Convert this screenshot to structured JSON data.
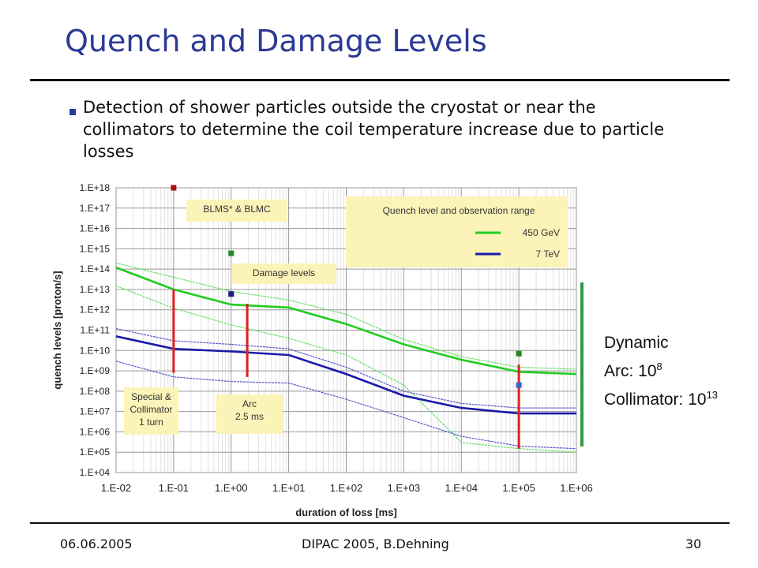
{
  "slide": {
    "title": "Quench and Damage Levels",
    "bullet": "Detection of shower particles outside the cryostat or near the collimators to determine the coil temperature increase due to particle losses",
    "side_note": {
      "line1": "Dynamic",
      "line2_prefix": "Arc: 10",
      "line2_exp": "8",
      "line3_prefix": "Collimator: 10",
      "line3_exp": "13"
    },
    "footer": {
      "date": "06.06.2005",
      "center": "DIPAC 2005, B.Dehning",
      "page": "30"
    }
  },
  "chart_data": {
    "type": "line",
    "xlabel": "duration of loss [ms]",
    "ylabel": "quench levels [proton/s]",
    "x_scale": "log",
    "y_scale": "log",
    "xlim": [
      0.01,
      1000000
    ],
    "ylim": [
      10000,
      1e+18
    ],
    "x_ticks": [
      "1.E-02",
      "1.E-01",
      "1.E+00",
      "1.E+01",
      "1.E+02",
      "1.E+03",
      "1.E+04",
      "1.E+05",
      "1.E+06"
    ],
    "y_ticks": [
      "1.E+04",
      "1.E+05",
      "1.E+06",
      "1.E+07",
      "1.E+08",
      "1.E+09",
      "1.E+10",
      "1.E+11",
      "1.E+12",
      "1.E+13",
      "1.E+14",
      "1.E+15",
      "1.E+16",
      "1.E+17",
      "1.E+18"
    ],
    "grid": true,
    "legend": {
      "title": "Quench level and observation range",
      "placement": "top-right",
      "entries": [
        {
          "label": "450 GeV",
          "color": "#22cc22"
        },
        {
          "label": "7 TeV",
          "color": "#1a1aaa"
        }
      ]
    },
    "series": [
      {
        "name": "450 GeV",
        "color": "#22cc22",
        "x": [
          0.01,
          0.1,
          1,
          10,
          100,
          1000,
          10000,
          100000,
          1000000
        ],
        "y": [
          120000000000000.0,
          10000000000000.0,
          1800000000000.0,
          1300000000000.0,
          200000000000.0,
          20000000000.0,
          3500000000.0,
          900000000.0,
          700000000.0
        ]
      },
      {
        "name": "7 TeV",
        "color": "#1a1aaa",
        "x": [
          0.01,
          0.1,
          1,
          10,
          100,
          1000,
          10000,
          100000,
          1000000
        ],
        "y": [
          50000000000.0,
          12000000000.0,
          9000000000.0,
          6000000000.0,
          700000000.0,
          60000000.0,
          15000000.0,
          8000000.0,
          8000000.0
        ]
      }
    ],
    "observation_range": [
      {
        "series": "450 GeV",
        "color": "#66dd66",
        "upper_x": [
          0.01,
          0.1,
          1,
          10,
          100,
          1000,
          10000,
          100000,
          1000000
        ],
        "upper_y": [
          200000000000000.0,
          40000000000000.0,
          8000000000000.0,
          3000000000000.0,
          600000000000.0,
          35000000000.0,
          5000000000.0,
          1500000000.0,
          1200000000.0
        ],
        "lower_x": [
          0.01,
          0.1,
          1,
          10,
          100,
          1000,
          10000,
          100000,
          1000000
        ],
        "lower_y": [
          15000000000000.0,
          1200000000000.0,
          180000000000.0,
          40000000000.0,
          6000000000.0,
          200000000.0,
          300000.0,
          150000.0,
          100000.0
        ]
      },
      {
        "series": "7 TeV",
        "color": "#5555cc",
        "upper_x": [
          0.01,
          0.1,
          1,
          10,
          100,
          1000,
          10000,
          100000,
          1000000
        ],
        "upper_y": [
          120000000000.0,
          30000000000.0,
          20000000000.0,
          12000000000.0,
          1500000000.0,
          100000000.0,
          25000000.0,
          15000000.0,
          15000000.0
        ],
        "lower_x": [
          0.01,
          0.1,
          1,
          10,
          100,
          1000,
          10000,
          100000,
          1000000
        ],
        "lower_y": [
          3000000000.0,
          500000000.0,
          300000000.0,
          250000000.0,
          40000000.0,
          5000000.0,
          600000.0,
          200000.0,
          150000.0
        ]
      }
    ],
    "damage_points": [
      {
        "x": 0.1,
        "y": 1e+18,
        "color": "#aa1111"
      },
      {
        "x": 1,
        "y": 600000000000000.0,
        "color": "#228822"
      },
      {
        "x": 1,
        "y": 6000000000000.0,
        "color": "#1a1a88"
      },
      {
        "x": 100000,
        "y": 7000000000.0,
        "color": "#228822"
      },
      {
        "x": 100000,
        "y": 200000000.0,
        "color": "#3366cc"
      }
    ],
    "ranges": [
      {
        "x": 0.1,
        "y_low": 800000000.0,
        "y_high": 10000000000000.0,
        "color": "#e02020"
      },
      {
        "x": 1.9,
        "y_low": 500000000.0,
        "y_high": 2000000000000.0,
        "color": "#e02020"
      },
      {
        "x": 100000,
        "y_low": 150000.0,
        "y_high": 2000000000.0,
        "color": "#e02020"
      }
    ],
    "annotations": [
      {
        "id": "blms",
        "text": "BLMS* & BLMC"
      },
      {
        "id": "damage",
        "text": "Damage levels"
      },
      {
        "id": "special",
        "lines": [
          "Special &",
          "Collimator",
          "1 turn"
        ]
      },
      {
        "id": "arc",
        "lines": [
          "Arc",
          "2.5 ms"
        ]
      }
    ]
  }
}
